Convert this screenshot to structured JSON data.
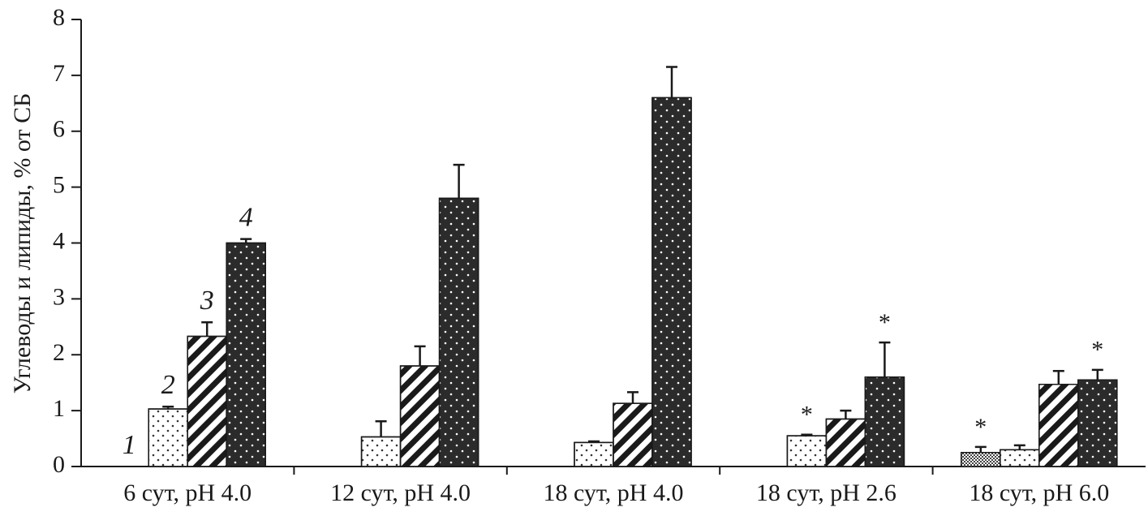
{
  "chart_data": {
    "type": "bar",
    "ylabel": "Углеводы и липиды, % от СБ",
    "categories": [
      "6 сут, pH 4.0",
      "12 сут, pH 4.0",
      "18 сут, pH 4.0",
      "18 сут, pH 2.6",
      "18 сут, pH 6.0"
    ],
    "ylim": [
      0,
      8
    ],
    "yticks": [
      0,
      1,
      2,
      3,
      4,
      5,
      6,
      7,
      8
    ],
    "series": [
      {
        "name": "1",
        "color": "#ffffff",
        "pattern": "crosshatch",
        "values": [
          0,
          0,
          0,
          0,
          0.25
        ],
        "errors": [
          null,
          null,
          null,
          null,
          0.1
        ],
        "annotations": [
          null,
          null,
          null,
          null,
          "*"
        ]
      },
      {
        "name": "2",
        "color": "#ffffff",
        "pattern": "dots",
        "values": [
          1.03,
          0.53,
          0.43,
          0.55,
          0.3
        ],
        "errors": [
          0.04,
          0.28,
          0.02,
          0.02,
          0.08
        ],
        "annotations": [
          null,
          null,
          null,
          "*",
          null
        ]
      },
      {
        "name": "3",
        "color": "#ffffff",
        "pattern": "stripes",
        "values": [
          2.33,
          1.8,
          1.13,
          0.85,
          1.47
        ],
        "errors": [
          0.25,
          0.35,
          0.2,
          0.15,
          0.24
        ],
        "annotations": [
          null,
          null,
          null,
          null,
          null
        ]
      },
      {
        "name": "4",
        "color": "#2b2b2b",
        "pattern": "whitedots",
        "values": [
          4.0,
          4.8,
          6.6,
          1.6,
          1.55
        ],
        "errors": [
          0.07,
          0.6,
          0.55,
          0.62,
          0.18
        ],
        "annotations": [
          null,
          null,
          null,
          "*",
          "*"
        ]
      }
    ]
  }
}
